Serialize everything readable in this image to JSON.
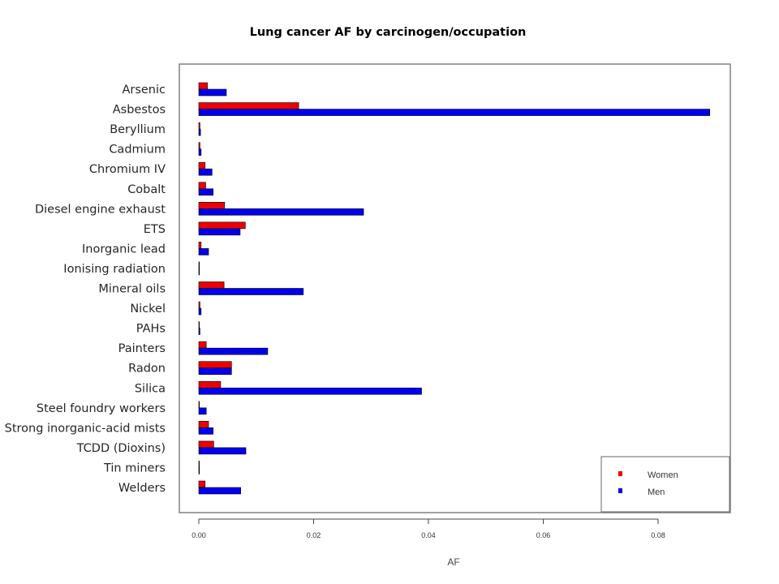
{
  "chart_data": {
    "type": "bar",
    "orientation": "horizontal",
    "title": "Lung cancer AF by carcinogen/occupation",
    "xlabel": "AF",
    "ylabel": "",
    "xlim": [
      0,
      0.09
    ],
    "x_ticks": [
      "0.00",
      "0.02",
      "0.04",
      "0.06",
      "0.08"
    ],
    "x_tick_values": [
      0,
      0.02,
      0.04,
      0.06,
      0.08
    ],
    "grid": false,
    "legend_position": "bottom-right",
    "categories": [
      "Arsenic",
      "Asbestos",
      "Beryllium",
      "Cadmium",
      "Chromium IV",
      "Cobalt",
      "Diesel engine exhaust",
      "ETS",
      "Inorganic lead",
      "Ionising radiation",
      "Mineral oils",
      "Nickel",
      "PAHs",
      "Painters",
      "Radon",
      "Silica",
      "Steel foundry workers",
      "Strong inorganic-acid mists",
      "TCDD (Dioxins)",
      "Tin miners",
      "Welders"
    ],
    "series": [
      {
        "name": "Women",
        "color": "#ee0000",
        "values": [
          0.0015,
          0.0174,
          0.0002,
          0.0002,
          0.0011,
          0.0012,
          0.0045,
          0.0081,
          0.0004,
          0.0001,
          0.0044,
          0.0002,
          0.0001,
          0.0013,
          0.0057,
          0.0038,
          0.0001,
          0.0017,
          0.0026,
          0.0001,
          0.0011
        ]
      },
      {
        "name": "Men",
        "color": "#0000ee",
        "values": [
          0.0048,
          0.089,
          0.0003,
          0.0004,
          0.0023,
          0.0025,
          0.0287,
          0.0072,
          0.0017,
          0.0001,
          0.0182,
          0.0004,
          0.0002,
          0.012,
          0.0057,
          0.0388,
          0.0013,
          0.0025,
          0.0082,
          0.0001,
          0.0073
        ]
      }
    ]
  }
}
